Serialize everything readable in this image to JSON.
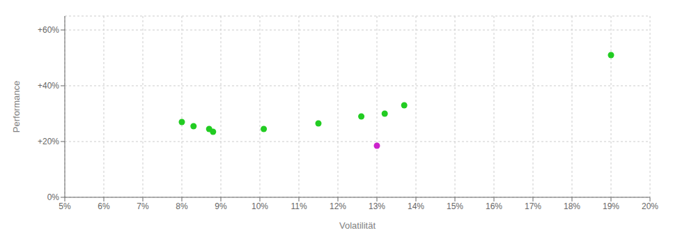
{
  "chart_data": {
    "type": "scatter",
    "xlabel": "Volatilität",
    "ylabel": "Performance",
    "xlim": [
      0.05,
      0.2
    ],
    "ylim": [
      0.0,
      0.65
    ],
    "xticks": [
      {
        "value": 0.05,
        "label": "5%"
      },
      {
        "value": 0.06,
        "label": "6%"
      },
      {
        "value": 0.07,
        "label": "7%"
      },
      {
        "value": 0.08,
        "label": "8%"
      },
      {
        "value": 0.09,
        "label": "9%"
      },
      {
        "value": 0.1,
        "label": "10%"
      },
      {
        "value": 0.11,
        "label": "11%"
      },
      {
        "value": 0.12,
        "label": "12%"
      },
      {
        "value": 0.13,
        "label": "13%"
      },
      {
        "value": 0.14,
        "label": "14%"
      },
      {
        "value": 0.15,
        "label": "15%"
      },
      {
        "value": 0.16,
        "label": "16%"
      },
      {
        "value": 0.17,
        "label": "17%"
      },
      {
        "value": 0.18,
        "label": "18%"
      },
      {
        "value": 0.19,
        "label": "19%"
      },
      {
        "value": 0.2,
        "label": "20%"
      }
    ],
    "yticks": [
      {
        "value": 0.0,
        "label": "0%"
      },
      {
        "value": 0.2,
        "label": "+20%"
      },
      {
        "value": 0.4,
        "label": "+40%"
      },
      {
        "value": 0.6,
        "label": "+60%"
      }
    ],
    "grid": true,
    "series": [
      {
        "color": "#22cc22",
        "x": [
          0.08,
          0.083,
          0.087,
          0.088,
          0.101,
          0.115,
          0.126,
          0.132,
          0.137,
          0.19
        ],
        "values": [
          0.27,
          0.255,
          0.245,
          0.235,
          0.245,
          0.265,
          0.29,
          0.3,
          0.33,
          0.51
        ]
      },
      {
        "color": "#cc22cc",
        "x": [
          0.13
        ],
        "values": [
          0.185
        ]
      }
    ]
  }
}
